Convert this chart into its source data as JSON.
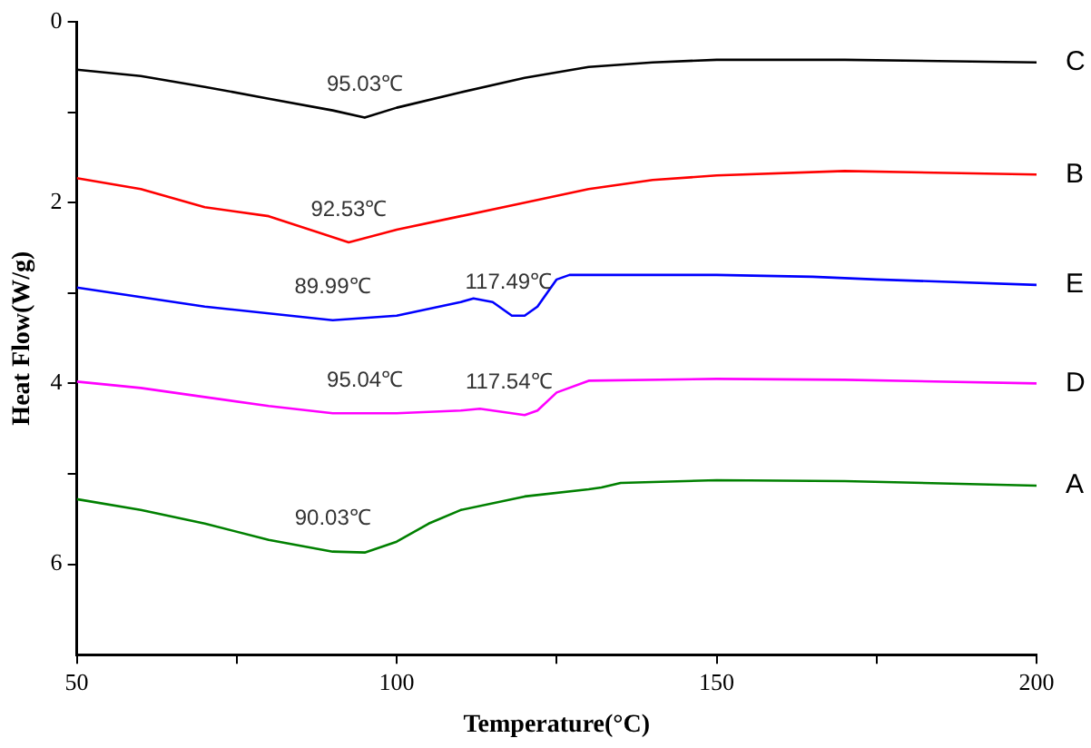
{
  "chart_data": {
    "type": "line",
    "xlabel": "Temperature(°C)",
    "ylabel": "Heat Flow(W/g)",
    "xlim": [
      50,
      200
    ],
    "xticks": [
      50,
      {
        "value": 75,
        "label": null
      },
      100,
      {
        "value": 125,
        "label": null
      },
      150,
      {
        "value": 175,
        "label": null
      },
      200
    ],
    "ylim": [
      7,
      0
    ],
    "yticks": [
      0,
      {
        "value": 1,
        "label": null
      },
      2,
      {
        "value": 3,
        "label": null
      },
      4,
      {
        "value": 5,
        "label": null
      },
      6
    ],
    "grid": false,
    "legend": false,
    "marker": "none",
    "line_style": "solid",
    "series": [
      {
        "name": "C",
        "color": "#000000",
        "x": [
          50,
          60,
          70,
          80,
          90,
          95,
          100,
          110,
          120,
          130,
          140,
          150,
          170,
          200
        ],
        "values": [
          0.53,
          0.6,
          0.72,
          0.85,
          0.98,
          1.06,
          0.95,
          0.78,
          0.62,
          0.5,
          0.45,
          0.42,
          0.42,
          0.45
        ]
      },
      {
        "name": "B",
        "color": "#ff0000",
        "x": [
          50,
          60,
          70,
          80,
          92.5,
          100,
          110,
          120,
          130,
          140,
          150,
          170,
          200
        ],
        "values": [
          1.73,
          1.85,
          2.05,
          2.15,
          2.44,
          2.3,
          2.15,
          2.0,
          1.85,
          1.75,
          1.7,
          1.65,
          1.69
        ]
      },
      {
        "name": "E",
        "color": "#0000ff",
        "x": [
          50,
          70,
          90,
          100,
          110,
          112,
          115,
          118,
          120,
          122,
          125,
          127,
          150,
          165,
          175,
          200
        ],
        "values": [
          2.94,
          3.15,
          3.3,
          3.25,
          3.1,
          3.06,
          3.1,
          3.25,
          3.25,
          3.15,
          2.85,
          2.8,
          2.8,
          2.82,
          2.85,
          2.91
        ]
      },
      {
        "name": "D",
        "color": "#ff00ff",
        "x": [
          50,
          60,
          70,
          80,
          90,
          100,
          110,
          113,
          117,
          120,
          122,
          125,
          130,
          150,
          170,
          200
        ],
        "values": [
          3.98,
          4.05,
          4.15,
          4.25,
          4.33,
          4.33,
          4.3,
          4.28,
          4.32,
          4.35,
          4.3,
          4.1,
          3.97,
          3.95,
          3.96,
          4.0
        ]
      },
      {
        "name": "A",
        "color": "#008000",
        "x": [
          50,
          60,
          70,
          80,
          90,
          95,
          100,
          105,
          110,
          120,
          130,
          132,
          135,
          150,
          170,
          200
        ],
        "values": [
          5.28,
          5.4,
          5.55,
          5.73,
          5.86,
          5.87,
          5.75,
          5.55,
          5.4,
          5.25,
          5.17,
          5.15,
          5.1,
          5.07,
          5.08,
          5.13
        ]
      }
    ],
    "annotations": [
      {
        "text": "95.03℃",
        "x": 95.03,
        "y": 1.06
      },
      {
        "text": "92.53℃",
        "x": 92.53,
        "y": 2.44
      },
      {
        "text": "89.99℃",
        "x": 89.99,
        "y": 3.3
      },
      {
        "text": "117.49℃",
        "x": 117.49,
        "y": 3.25
      },
      {
        "text": "95.04℃",
        "x": 95.04,
        "y": 4.33
      },
      {
        "text": "117.54℃",
        "x": 117.54,
        "y": 4.35
      },
      {
        "text": "90.03℃",
        "x": 90.03,
        "y": 5.86
      }
    ]
  }
}
